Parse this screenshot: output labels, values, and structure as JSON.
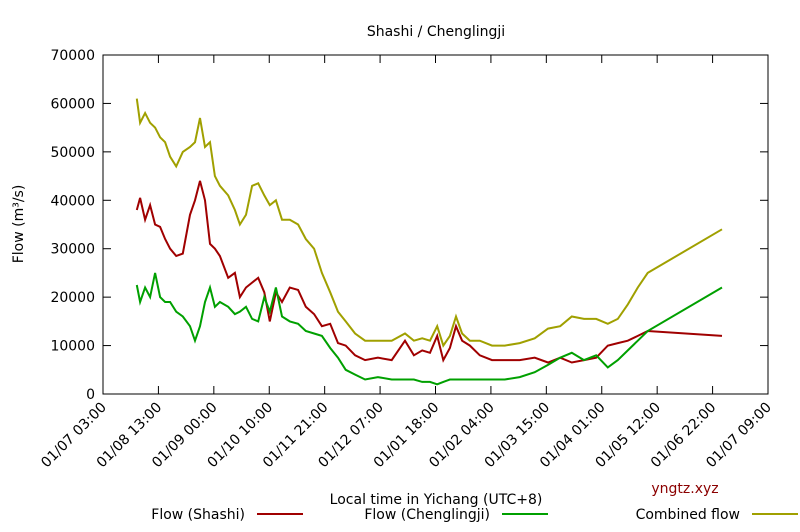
{
  "chart_data": {
    "type": "line",
    "title": "Shashi / Chenglingji",
    "xlabel": "Local time in Yichang (UTC+8)",
    "ylabel": "Flow (m³/s)",
    "watermark": "yngtz.xyz",
    "xlim": [
      0,
      12
    ],
    "xticks": [
      {
        "value": 0,
        "label": "01/07 03:00"
      },
      {
        "value": 1,
        "label": "01/08 13:00"
      },
      {
        "value": 2,
        "label": "01/09 00:00"
      },
      {
        "value": 3,
        "label": "01/10 10:00"
      },
      {
        "value": 4,
        "label": "01/11 21:00"
      },
      {
        "value": 5,
        "label": "01/12 07:00"
      },
      {
        "value": 6,
        "label": "01/01 18:00"
      },
      {
        "value": 7,
        "label": "01/02 04:00"
      },
      {
        "value": 8,
        "label": "01/03 15:00"
      },
      {
        "value": 9,
        "label": "01/04 01:00"
      },
      {
        "value": 10,
        "label": "01/05 12:00"
      },
      {
        "value": 11,
        "label": "01/06 22:00"
      },
      {
        "value": 12,
        "label": "01/07 09:00"
      }
    ],
    "ylim": [
      0,
      70000
    ],
    "yticks": [
      0,
      10000,
      20000,
      30000,
      40000,
      50000,
      60000,
      70000
    ],
    "x": [
      0.61,
      0.67,
      0.76,
      0.85,
      0.94,
      1.03,
      1.12,
      1.21,
      1.32,
      1.44,
      1.57,
      1.66,
      1.75,
      1.84,
      1.93,
      2.02,
      2.11,
      2.26,
      2.38,
      2.47,
      2.58,
      2.69,
      2.8,
      2.91,
      3.01,
      3.12,
      3.23,
      3.37,
      3.52,
      3.66,
      3.81,
      3.95,
      4.1,
      4.24,
      4.38,
      4.55,
      4.73,
      4.96,
      5.21,
      5.45,
      5.61,
      5.76,
      5.9,
      6.03,
      6.14,
      6.26,
      6.37,
      6.48,
      6.62,
      6.8,
      7.02,
      7.25,
      7.52,
      7.79,
      8.03,
      8.25,
      8.46,
      8.68,
      8.9,
      9.11,
      9.29,
      9.47,
      9.65,
      9.83,
      11.17
    ],
    "series": [
      {
        "name": "Flow (Shashi)",
        "color": "#a00000",
        "values": [
          38000,
          40500,
          36000,
          39000,
          35000,
          34500,
          32000,
          30000,
          28500,
          29000,
          37000,
          40000,
          44000,
          40000,
          31000,
          30000,
          28500,
          24000,
          25000,
          20000,
          22000,
          23000,
          24000,
          21000,
          15000,
          21000,
          19000,
          22000,
          21500,
          18000,
          16500,
          14000,
          14500,
          10500,
          10000,
          8000,
          7000,
          7500,
          7000,
          11000,
          8000,
          9000,
          8500,
          12000,
          7000,
          9500,
          14000,
          11000,
          10000,
          8000,
          7000,
          7000,
          7000,
          7500,
          6500,
          7500,
          6500,
          7000,
          7500,
          10000,
          10500,
          11000,
          12000,
          13000,
          12000
        ]
      },
      {
        "name": "Flow (Chenglingji)",
        "color": "#00a000",
        "values": [
          22500,
          19000,
          22000,
          20000,
          25000,
          20000,
          19000,
          19000,
          17000,
          16000,
          14000,
          11000,
          14000,
          19000,
          22000,
          18000,
          19000,
          18000,
          16500,
          17000,
          18000,
          15500,
          15000,
          20000,
          17000,
          22000,
          16000,
          15000,
          14500,
          13000,
          12500,
          12000,
          9500,
          7500,
          5000,
          4000,
          3000,
          3500,
          3000,
          3000,
          3000,
          2500,
          2500,
          2000,
          2500,
          3000,
          3000,
          3000,
          3000,
          3000,
          3000,
          3000,
          3500,
          4500,
          6000,
          7500,
          8500,
          7000,
          8000,
          5500,
          7000,
          9000,
          11000,
          13000,
          22000
        ]
      },
      {
        "name": "Combined flow",
        "color": "#a0a000",
        "values": [
          61000,
          56000,
          58000,
          56000,
          55000,
          53000,
          52000,
          49000,
          47000,
          50000,
          51000,
          52000,
          57000,
          51000,
          52000,
          45000,
          43000,
          41000,
          38000,
          35000,
          37000,
          43000,
          43500,
          41000,
          39000,
          40000,
          36000,
          36000,
          35000,
          32000,
          30000,
          25000,
          21000,
          17000,
          15000,
          12500,
          11000,
          11000,
          11000,
          12500,
          11000,
          11500,
          11000,
          14000,
          10000,
          12000,
          16000,
          12500,
          11000,
          11000,
          10000,
          10000,
          10500,
          11500,
          13500,
          14000,
          16000,
          15500,
          15500,
          14500,
          15500,
          18500,
          22000,
          25000,
          34000
        ]
      }
    ]
  }
}
